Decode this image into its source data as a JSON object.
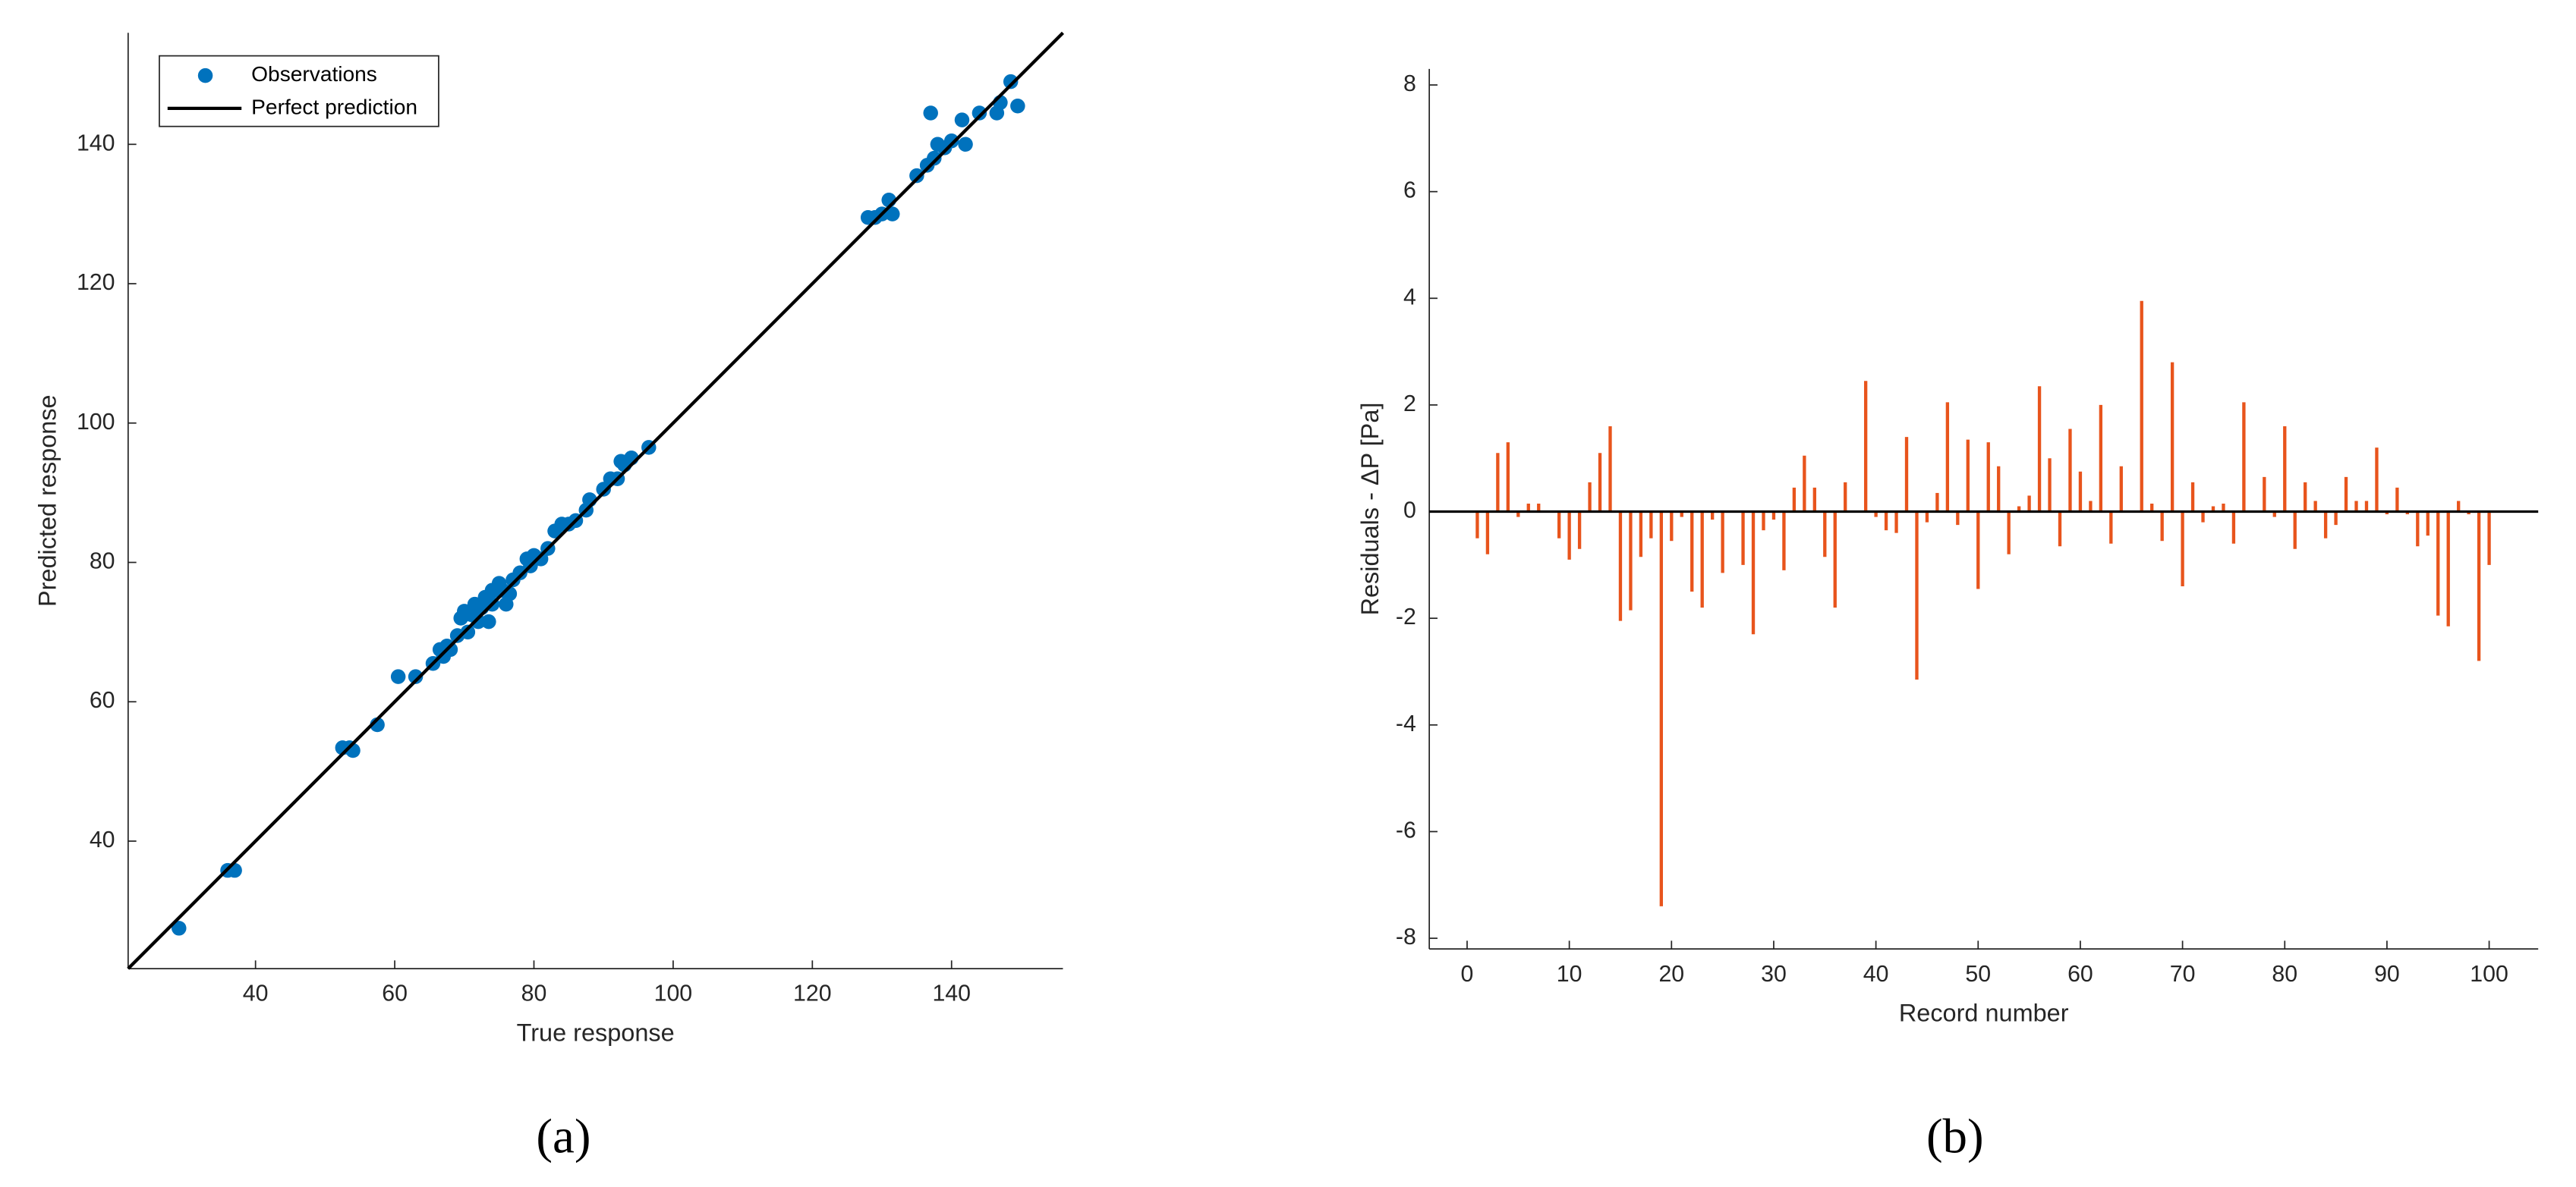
{
  "chart_data": [
    {
      "type": "scatter",
      "caption": "(a)",
      "xlabel": "True response",
      "ylabel": "Predicted response",
      "xlim": [
        21.7,
        156
      ],
      "ylim": [
        21.7,
        156
      ],
      "xticks": [
        40,
        60,
        80,
        100,
        120,
        140
      ],
      "yticks": [
        40,
        60,
        80,
        100,
        120,
        140
      ],
      "grid": false,
      "legend": "upper left",
      "series": [
        {
          "name": "Observations",
          "color": "#0072bd",
          "style": "markers",
          "x": [
            29,
            36,
            37,
            52.5,
            53.5,
            54,
            57.5,
            60.5,
            63,
            65.5,
            66.5,
            67,
            67.5,
            68,
            69,
            69.5,
            70,
            70.5,
            71,
            71.5,
            72,
            72.5,
            73,
            73.5,
            74,
            74,
            74.5,
            75,
            75.5,
            76,
            76.5,
            77,
            78,
            79,
            79.5,
            80,
            81,
            82,
            83,
            84,
            85,
            86,
            87.5,
            88,
            90,
            91,
            92,
            92.5,
            93,
            94,
            96.5,
            128,
            129,
            130,
            131,
            131.5,
            135,
            136.5,
            137,
            137.5,
            138,
            139,
            140,
            141.5,
            142,
            144,
            146.5,
            147,
            148.5,
            149.5
          ],
          "values": [
            27.5,
            35.8,
            35.8,
            53.4,
            53.4,
            53,
            56.7,
            63.6,
            63.6,
            65.5,
            67.5,
            66.5,
            68,
            67.5,
            69.5,
            72,
            73,
            70,
            72.5,
            74,
            71.5,
            73.5,
            75,
            71.5,
            76,
            74,
            76,
            77,
            76,
            74,
            75.5,
            77.5,
            78.5,
            80.5,
            79.5,
            81,
            80.5,
            82,
            84.5,
            85.5,
            85.5,
            86,
            87.5,
            89,
            90.5,
            92,
            92,
            94.5,
            94,
            95,
            96.5,
            129.5,
            129.5,
            130,
            132,
            130,
            135.5,
            137,
            144.5,
            138,
            140,
            139.5,
            140.5,
            143.5,
            140,
            144.5,
            144.5,
            146,
            149,
            145.5
          ]
        },
        {
          "name": "Perfect prediction",
          "color": "#000000",
          "style": "line",
          "x": [
            21.7,
            156
          ],
          "values": [
            21.7,
            156
          ]
        }
      ]
    },
    {
      "type": "stem",
      "caption": "(b)",
      "xlabel": "Record number",
      "ylabel": "Residuals - ΔP [Pa]",
      "xlim": [
        -3.7,
        104.8
      ],
      "ylim": [
        -8.2,
        8.3
      ],
      "xticks": [
        0,
        10,
        20,
        30,
        40,
        50,
        60,
        70,
        80,
        90,
        100
      ],
      "yticks": [
        -8,
        -6,
        -4,
        -2,
        0,
        2,
        4,
        6,
        8
      ],
      "grid": false,
      "series": [
        {
          "color": "#e8541c",
          "x": [
            1,
            2,
            3,
            4,
            5,
            6,
            7,
            8,
            9,
            10,
            11,
            12,
            13,
            14,
            15,
            16,
            17,
            18,
            19,
            20,
            21,
            22,
            23,
            24,
            25,
            26,
            27,
            28,
            29,
            30,
            31,
            32,
            33,
            34,
            35,
            36,
            37,
            38,
            39,
            40,
            41,
            42,
            43,
            44,
            45,
            46,
            47,
            48,
            49,
            50,
            51,
            52,
            53,
            54,
            55,
            56,
            57,
            58,
            59,
            60,
            61,
            62,
            63,
            64,
            65,
            66,
            67,
            68,
            69,
            70,
            71,
            72,
            73,
            74,
            75,
            76,
            77,
            78,
            79,
            80,
            81,
            82,
            83,
            84,
            85,
            86,
            87,
            88,
            89,
            90,
            91,
            92,
            93,
            94,
            95,
            96,
            97,
            98,
            99,
            100
          ],
          "values": [
            -0.5,
            -0.8,
            1.1,
            1.3,
            -0.1,
            0.15,
            0.15,
            0,
            -0.5,
            -0.9,
            -0.7,
            0.55,
            1.1,
            1.6,
            -2.05,
            -1.85,
            -0.85,
            -0.5,
            -7.4,
            -0.55,
            -0.1,
            -1.5,
            -1.8,
            -0.15,
            -1.15,
            0,
            -1.0,
            -2.3,
            -0.35,
            -0.15,
            -1.1,
            0.45,
            1.05,
            0.45,
            -0.85,
            -1.8,
            0.55,
            0,
            2.45,
            -0.1,
            -0.35,
            -0.4,
            1.4,
            -3.15,
            -0.2,
            0.35,
            2.05,
            -0.25,
            1.35,
            -1.45,
            1.3,
            0.85,
            -0.8,
            0.1,
            0.3,
            2.35,
            1.0,
            -0.65,
            1.55,
            0.75,
            0.2,
            2.0,
            -0.6,
            0.85,
            0,
            3.95,
            0.15,
            -0.55,
            2.8,
            -1.4,
            0.55,
            -0.2,
            0.1,
            0.15,
            -0.6,
            2.05,
            0,
            0.65,
            -0.1,
            1.6,
            -0.7,
            0.55,
            0.2,
            -0.5,
            -0.25,
            0.65,
            0.2,
            0.2,
            1.2,
            -0.05,
            0.45,
            -0.05,
            -0.65,
            -0.45,
            -1.95,
            -2.15,
            0.2,
            -0.05,
            -2.8,
            -1.0
          ]
        }
      ]
    }
  ]
}
